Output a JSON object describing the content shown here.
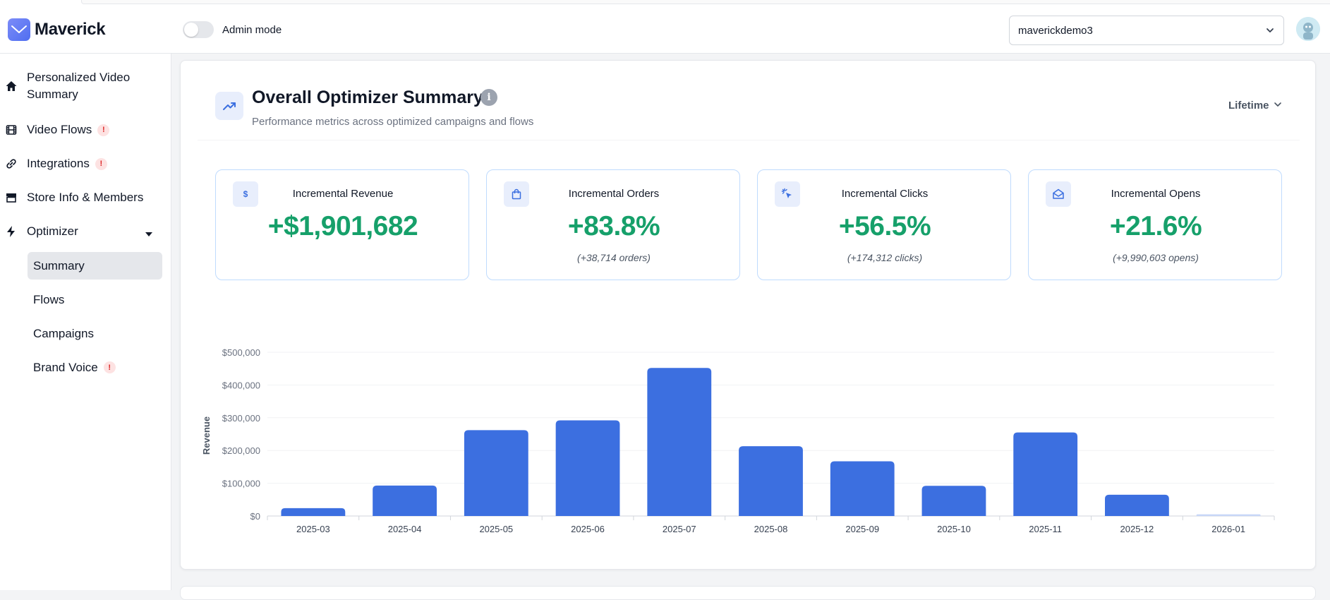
{
  "app": {
    "name": "Maverick"
  },
  "header": {
    "admin_label": "Admin mode",
    "admin_enabled": false,
    "store_selected": "maverickdemo3"
  },
  "sidebar": {
    "items": [
      {
        "label": "Personalized Video Summary",
        "icon": "home-icon"
      },
      {
        "label": "Video Flows",
        "icon": "film-icon",
        "alert": "!"
      },
      {
        "label": "Integrations",
        "icon": "link-icon",
        "alert": "!"
      },
      {
        "label": "Store Info & Members",
        "icon": "store-icon"
      },
      {
        "label": "Optimizer",
        "icon": "bolt-icon"
      }
    ],
    "optimizer_sub": [
      {
        "label": "Summary",
        "active": true
      },
      {
        "label": "Flows"
      },
      {
        "label": "Campaigns"
      },
      {
        "label": "Brand Voice",
        "alert": "!"
      }
    ]
  },
  "summary": {
    "title": "Overall Optimizer Summary",
    "subtitle": "Performance metrics across optimized campaigns and flows",
    "period": "Lifetime",
    "info_glyph": "i"
  },
  "metrics": [
    {
      "label": "Incremental Revenue",
      "value": "+$1,901,682",
      "sub": "",
      "icon": "dollar-icon",
      "glyph": "$"
    },
    {
      "label": "Incremental Orders",
      "value": "+83.8%",
      "sub": "(+38,714 orders)",
      "icon": "shopping-bag-icon"
    },
    {
      "label": "Incremental Clicks",
      "value": "+56.5%",
      "sub": "(+174,312 clicks)",
      "icon": "cursor-click-icon"
    },
    {
      "label": "Incremental Opens",
      "value": "+21.6%",
      "sub": "(+9,990,603 opens)",
      "icon": "mail-open-icon"
    }
  ],
  "chart_data": {
    "type": "bar",
    "categories": [
      "2025-03",
      "2025-04",
      "2025-05",
      "2025-06",
      "2025-07",
      "2025-08",
      "2025-09",
      "2025-10",
      "2025-11",
      "2025-12",
      "2026-01"
    ],
    "values": [
      24000,
      93000,
      262000,
      292000,
      452000,
      213000,
      167000,
      92000,
      255000,
      65000,
      5000
    ],
    "ylabel": "Revenue",
    "xlabel": "",
    "ylim": [
      0,
      500000
    ],
    "yticks": [
      "$0",
      "$100,000",
      "$200,000",
      "$300,000",
      "$400,000",
      "$500,000"
    ],
    "colors": {
      "bar": "#3c6fe0",
      "last_bar": "#c7d6f7"
    }
  }
}
